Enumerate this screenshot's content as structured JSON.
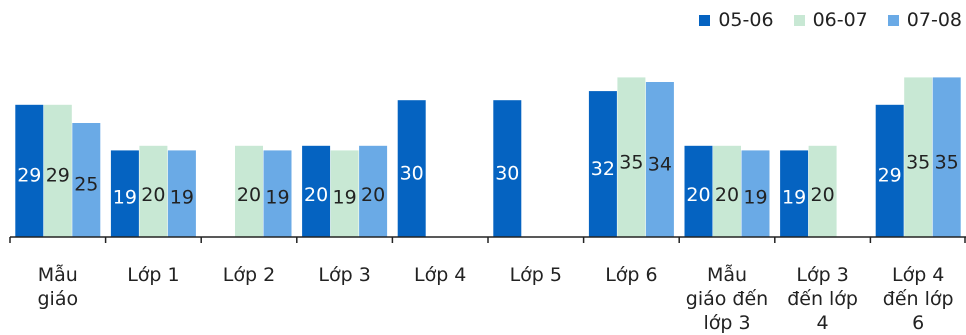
{
  "chart_data": {
    "type": "bar",
    "categories": [
      "Mẫu giáo",
      "Lớp 1",
      "Lớp 2",
      "Lớp 3",
      "Lớp 4",
      "Lớp 5",
      "Lớp 6",
      "Mẫu giáo đến lớp 3",
      "Lớp 3 đến lớp 4",
      "Lớp 4 đến lớp 6"
    ],
    "category_lines": [
      [
        "Mẫu",
        "giáo"
      ],
      [
        "Lớp 1"
      ],
      [
        "Lớp 2"
      ],
      [
        "Lớp 3"
      ],
      [
        "Lớp 4"
      ],
      [
        "Lớp 5"
      ],
      [
        "Lớp 6"
      ],
      [
        "Mẫu",
        "giáo đến",
        "lớp 3"
      ],
      [
        "Lớp 3",
        "đến lớp",
        "4"
      ],
      [
        "Lớp 4",
        "đến lớp",
        "6"
      ]
    ],
    "series": [
      {
        "name": "05-06",
        "color": "#0563c1",
        "values": [
          29,
          19,
          null,
          20,
          30,
          30,
          32,
          20,
          19,
          29
        ]
      },
      {
        "name": "06-07",
        "color": "#c8e8d4",
        "values": [
          29,
          20,
          20,
          19,
          null,
          null,
          35,
          20,
          20,
          35
        ]
      },
      {
        "name": "07-08",
        "color": "#6aaae6",
        "values": [
          25,
          19,
          19,
          20,
          null,
          null,
          34,
          19,
          null,
          35
        ]
      }
    ],
    "ylim": [
      0,
      36
    ],
    "legend_position": "top-right",
    "grid": false
  }
}
